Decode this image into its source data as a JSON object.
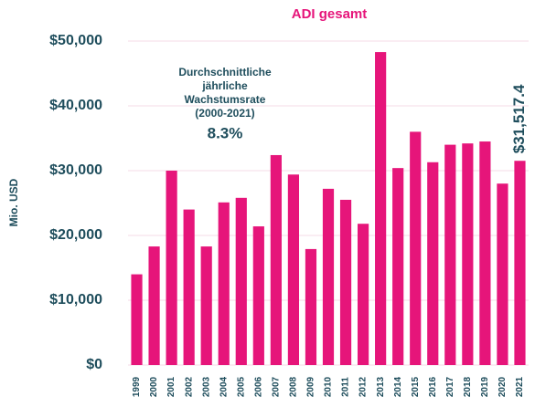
{
  "chart_data": {
    "type": "bar",
    "title": "ADI gesamt",
    "ylabel": "Mio. USD",
    "categories": [
      "1999",
      "2000",
      "2001",
      "2002",
      "2003",
      "2004",
      "2005",
      "2006",
      "2007",
      "2008",
      "2009",
      "2010",
      "2011",
      "2012",
      "2013",
      "2014",
      "2015",
      "2016",
      "2017",
      "2018",
      "2019",
      "2020",
      "2021"
    ],
    "values": [
      14000,
      18300,
      30000,
      24000,
      18300,
      25100,
      25800,
      21400,
      32400,
      29400,
      17900,
      27200,
      25500,
      21800,
      48300,
      30400,
      36000,
      31300,
      34000,
      34200,
      34500,
      28000,
      31517.4
    ],
    "value_labels": [
      null,
      null,
      null,
      null,
      null,
      null,
      null,
      null,
      null,
      null,
      null,
      null,
      null,
      null,
      null,
      null,
      null,
      null,
      null,
      null,
      null,
      null,
      "$31,517.4"
    ],
    "color": "#e6157a",
    "ylim": [
      0,
      50000
    ],
    "yticks": [
      {
        "value": 0,
        "label": "$0"
      },
      {
        "value": 10000,
        "label": "$10,000"
      },
      {
        "value": 20000,
        "label": "$20,000"
      },
      {
        "value": 30000,
        "label": "$30,000"
      },
      {
        "value": 40000,
        "label": "$40,000"
      },
      {
        "value": 50000,
        "label": "$50,000"
      }
    ],
    "grid": true,
    "annotations": [
      "Durchschnittliche",
      "jährliche",
      "Wachstumsrate",
      "(2000-2021)",
      "8.3%"
    ]
  }
}
